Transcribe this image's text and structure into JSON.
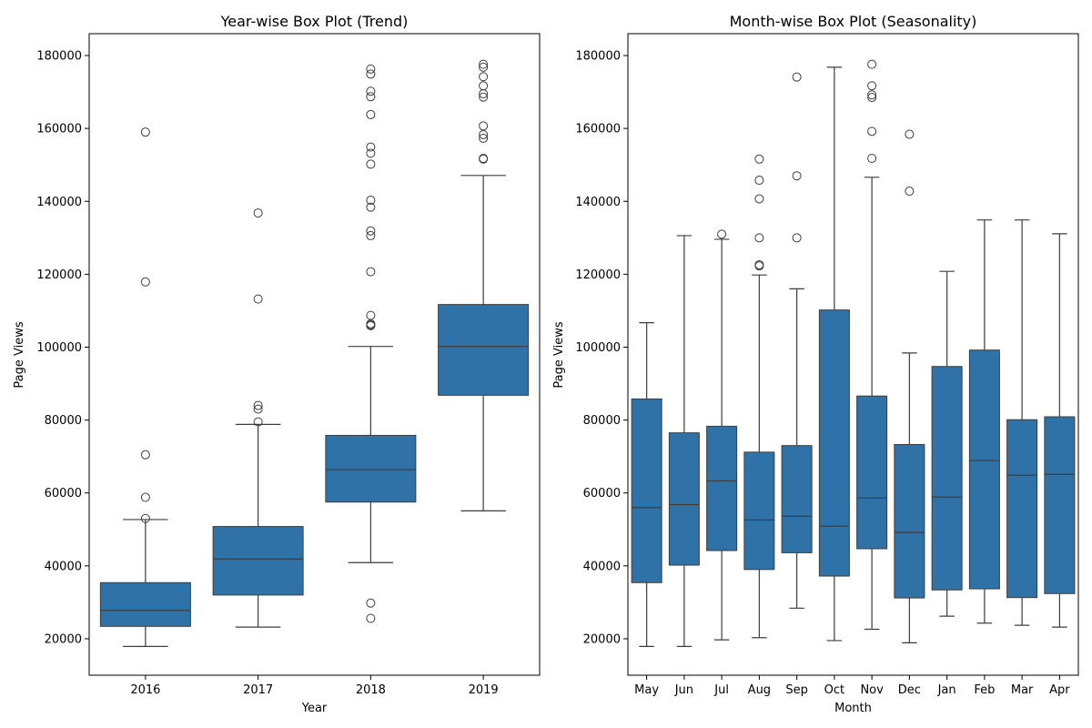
{
  "chart_data": [
    {
      "type": "box",
      "title": "Year-wise Box Plot (Trend)",
      "xlabel": "Year",
      "ylabel": "Page Views",
      "ylim": [
        10000,
        186000
      ],
      "yticks": [
        20000,
        40000,
        60000,
        80000,
        100000,
        120000,
        140000,
        160000,
        180000
      ],
      "color": "#2e72a8",
      "categories": [
        "2016",
        "2017",
        "2018",
        "2019"
      ],
      "boxes": [
        {
          "q1": 23400,
          "median": 27800,
          "q3": 35400,
          "low": 17900,
          "high": 52700,
          "outliers": [
            159000,
            117900,
            70500,
            58800,
            53000
          ]
        },
        {
          "q1": 32000,
          "median": 41900,
          "q3": 50800,
          "low": 23200,
          "high": 78800,
          "outliers": [
            136800,
            113200,
            84000,
            83000,
            79500
          ]
        },
        {
          "q1": 57500,
          "median": 66400,
          "q3": 75800,
          "low": 40900,
          "high": 100200,
          "outliers": [
            176300,
            174900,
            170200,
            168700,
            163800,
            154900,
            153200,
            150200,
            140300,
            138400,
            131900,
            130600,
            120700,
            108700,
            106400,
            106100,
            105900,
            29800,
            25600
          ]
        },
        {
          "q1": 86800,
          "median": 100200,
          "q3": 111700,
          "low": 55100,
          "high": 147100,
          "outliers": [
            177600,
            176800,
            174200,
            171700,
            169500,
            168600,
            160700,
            158300,
            157300,
            151800,
            151600
          ]
        }
      ]
    },
    {
      "type": "box",
      "title": "Month-wise Box Plot (Seasonality)",
      "xlabel": "Month",
      "ylabel": "Page Views",
      "ylim": [
        10000,
        186000
      ],
      "yticks": [
        20000,
        40000,
        60000,
        80000,
        100000,
        120000,
        140000,
        160000,
        180000
      ],
      "color": "#2e72a8",
      "categories": [
        "May",
        "Jun",
        "Jul",
        "Aug",
        "Sep",
        "Oct",
        "Nov",
        "Dec",
        "Jan",
        "Feb",
        "Mar",
        "Apr"
      ],
      "boxes": [
        {
          "q1": 35400,
          "median": 56000,
          "q3": 85800,
          "low": 17900,
          "high": 106700,
          "outliers": []
        },
        {
          "q1": 40200,
          "median": 56800,
          "q3": 76500,
          "low": 17900,
          "high": 130600,
          "outliers": []
        },
        {
          "q1": 44200,
          "median": 63300,
          "q3": 78300,
          "low": 19700,
          "high": 129600,
          "outliers": [
            131000
          ]
        },
        {
          "q1": 39000,
          "median": 52600,
          "q3": 71200,
          "low": 20300,
          "high": 119800,
          "outliers": [
            151600,
            145800,
            140700,
            130000,
            122600,
            122300
          ]
        },
        {
          "q1": 43600,
          "median": 53600,
          "q3": 73000,
          "low": 28400,
          "high": 116000,
          "outliers": [
            174100,
            147000,
            130000
          ]
        },
        {
          "q1": 37200,
          "median": 50900,
          "q3": 110200,
          "low": 19500,
          "high": 176800,
          "outliers": []
        },
        {
          "q1": 44700,
          "median": 58600,
          "q3": 86600,
          "low": 22600,
          "high": 146600,
          "outliers": [
            177600,
            171700,
            169200,
            168500,
            159200,
            151800
          ]
        },
        {
          "q1": 31200,
          "median": 49200,
          "q3": 73300,
          "low": 18900,
          "high": 98400,
          "outliers": [
            158400,
            142800
          ]
        },
        {
          "q1": 33400,
          "median": 58900,
          "q3": 94700,
          "low": 26200,
          "high": 120800,
          "outliers": []
        },
        {
          "q1": 33700,
          "median": 68900,
          "q3": 99200,
          "low": 24300,
          "high": 134900,
          "outliers": []
        },
        {
          "q1": 31300,
          "median": 64900,
          "q3": 80100,
          "low": 23700,
          "high": 134900,
          "outliers": []
        },
        {
          "q1": 32400,
          "median": 65100,
          "q3": 80900,
          "low": 23200,
          "high": 131100,
          "outliers": []
        }
      ]
    }
  ]
}
